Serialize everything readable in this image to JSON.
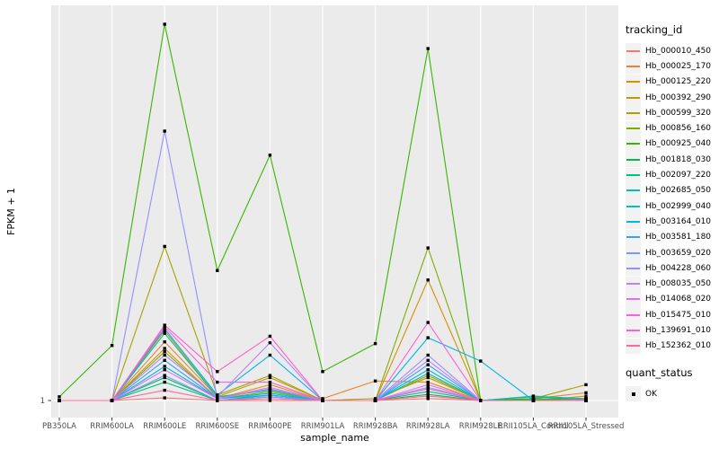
{
  "chart_data": {
    "type": "line",
    "title": "",
    "xlabel": "sample_name",
    "ylabel": "FPKM + 1",
    "y_scale": "log10",
    "y_tick_labels": [
      "1"
    ],
    "y_range": [
      0.65,
      25000
    ],
    "grid": true,
    "panel_bg": "#EBEBEB",
    "grid_color": "#FFFFFF",
    "point_marker": "black-square",
    "legend_title": "tracking_id",
    "legend_position": "right",
    "quant_legend": {
      "title": "quant_status",
      "items": [
        {
          "label": "OK",
          "marker": "black-square"
        }
      ]
    },
    "categories": [
      "PB350LA",
      "RRIM600LA",
      "RRIM600LE",
      "RRIM600SE",
      "RRIM600PE",
      "RRIM901LA",
      "RRIM928BA",
      "RRIM928LA",
      "RRIM928LE",
      "RRII105LA_Control",
      "RRII105LA_Stressed"
    ],
    "series": [
      {
        "name": "Hb_000010_450",
        "color": "#F8766D",
        "values": [
          1,
          1,
          1.07,
          1,
          1,
          1,
          1,
          1.05,
          1,
          1,
          1
        ]
      },
      {
        "name": "Hb_000025_170",
        "color": "#EA8331",
        "values": [
          1,
          1,
          4.5,
          1.1,
          1.3,
          1.05,
          1.65,
          1.6,
          1,
          1.05,
          1.22
        ]
      },
      {
        "name": "Hb_000125_220",
        "color": "#D89000",
        "values": [
          1,
          1,
          3.8,
          1.05,
          1.5,
          1,
          1,
          22,
          1,
          1,
          1.12
        ]
      },
      {
        "name": "Hb_000392_290",
        "color": "#C09B00",
        "values": [
          1,
          1,
          6.0,
          1.1,
          1.8,
          1,
          1,
          1.9,
          1,
          1,
          1.05
        ]
      },
      {
        "name": "Hb_000599_320",
        "color": "#A3A500",
        "values": [
          1,
          1,
          52,
          1.15,
          1.9,
          1,
          1.05,
          1.8,
          1,
          1.05,
          1.5
        ]
      },
      {
        "name": "Hb_000856_160",
        "color": "#7CAE00",
        "values": [
          1,
          1,
          3.5,
          1.05,
          1.25,
          1,
          1,
          50,
          1,
          1,
          1.05
        ]
      },
      {
        "name": "Hb_000925_040",
        "color": "#39B600",
        "values": [
          1.1,
          4.1,
          15500,
          28,
          540,
          2.1,
          4.3,
          8300,
          1,
          1.05,
          1.02
        ]
      },
      {
        "name": "Hb_001818_030",
        "color": "#00BB4E",
        "values": [
          1,
          1,
          1.8,
          1,
          1.1,
          1,
          1,
          1.17,
          1,
          1.02,
          1
        ]
      },
      {
        "name": "Hb_002097_220",
        "color": "#00C087",
        "values": [
          1,
          1,
          1.6,
          1,
          1.15,
          1,
          1,
          1.26,
          1,
          1.1,
          1.02
        ]
      },
      {
        "name": "Hb_002685_050",
        "color": "#00C0B2",
        "values": [
          1,
          1,
          5.6,
          1.1,
          1.3,
          1,
          1,
          2.0,
          1,
          1.12,
          1.05
        ]
      },
      {
        "name": "Hb_002999_040",
        "color": "#00BDD2",
        "values": [
          1,
          1,
          2.4,
          1.05,
          1.2,
          1,
          1,
          2.2,
          1,
          1,
          1
        ]
      },
      {
        "name": "Hb_003164_010",
        "color": "#00B4EF",
        "values": [
          1,
          1,
          6.3,
          1.15,
          3.2,
          1,
          1,
          5.0,
          2.75,
          1,
          1
        ]
      },
      {
        "name": "Hb_003581_180",
        "color": "#35A2FF",
        "values": [
          1,
          1,
          2.8,
          1.05,
          1.15,
          1,
          1,
          2.5,
          1,
          1,
          1
        ]
      },
      {
        "name": "Hb_003659_020",
        "color": "#7997FF",
        "values": [
          1,
          1,
          1.9,
          1,
          1.1,
          1,
          1,
          1.4,
          1,
          1,
          1
        ]
      },
      {
        "name": "Hb_004228_060",
        "color": "#9590FF",
        "values": [
          1,
          1,
          1000,
          1.05,
          1.35,
          1,
          1,
          3.2,
          1,
          1,
          1
        ]
      },
      {
        "name": "Hb_008035_050",
        "color": "#BC81FF",
        "values": [
          1,
          1,
          3.2,
          1.1,
          4.4,
          1,
          1,
          2.8,
          1,
          1,
          1
        ]
      },
      {
        "name": "Hb_014068_020",
        "color": "#E26EF7",
        "values": [
          1,
          1,
          2.2,
          1.05,
          1.4,
          1,
          1,
          1.5,
          1,
          1,
          1
        ]
      },
      {
        "name": "Hb_015475_010",
        "color": "#F863DF",
        "values": [
          1,
          1,
          6.6,
          1.6,
          1.6,
          1,
          1,
          7.4,
          1,
          1,
          1.02
        ]
      },
      {
        "name": "Hb_139691_010",
        "color": "#FF61C7",
        "values": [
          1,
          1,
          6.9,
          2.1,
          5.2,
          1,
          1,
          1.35,
          1,
          1,
          1
        ]
      },
      {
        "name": "Hb_152362_010",
        "color": "#FF689E",
        "values": [
          1,
          1,
          1.3,
          1,
          1.05,
          1,
          1,
          1.12,
          1,
          1,
          1
        ]
      }
    ]
  }
}
